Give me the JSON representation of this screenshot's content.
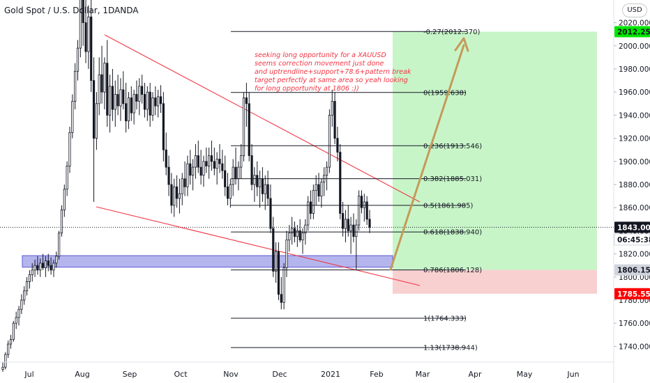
{
  "header": {
    "symbol_title": "Gold Spot / U.S. Dollar, 1",
    "symbol_title_tail": "DANDA",
    "currency_button": "USD"
  },
  "annotation": {
    "lines": [
      "seeking long opportunity for a XAUUSD",
      "seems correction movement just done",
      "and uptrendline+support+78.6+pattern break",
      "target perfectly at same area so yeah looking",
      "for long opportunity at 1806 :))"
    ],
    "color": "#f23645"
  },
  "chart_data": {
    "type": "candlestick",
    "title": "Gold Spot / U.S. Dollar",
    "x_ticks": [
      "Jul",
      "Aug",
      "Sep",
      "Oct",
      "Nov",
      "Dec",
      "2021",
      "Feb",
      "Mar",
      "Apr",
      "May",
      "Jun"
    ],
    "y_ticks": [
      "1740.000",
      "1760.000",
      "1780.000",
      "1800.000",
      "1820.000",
      "1840.000",
      "1860.000",
      "1880.000",
      "1900.000",
      "1920.000",
      "1940.000",
      "1960.000",
      "1980.000",
      "2000.000",
      "2020.000"
    ],
    "ylim": [
      1722,
      2060
    ],
    "price_tags": [
      {
        "label": "2012.255",
        "value": 2012.255,
        "bg": "#00e600",
        "fg": "#131722"
      },
      {
        "label": "1843.005",
        "value": 1843.005,
        "bg": "#131722",
        "fg": "#ffffff"
      },
      {
        "label": "06:45:38",
        "value": 1832.5,
        "bg": "#ffffff",
        "fg": "#131722"
      },
      {
        "label": "1806.159",
        "value": 1806.159,
        "bg": "#d1d4dc",
        "fg": "#131722"
      },
      {
        "label": "1785.550",
        "value": 1785.55,
        "bg": "#ff0000",
        "fg": "#ffffff"
      }
    ],
    "fib_levels": [
      {
        "label": "-0.27(2012.370)",
        "value": 2012.37
      },
      {
        "label": "0(1959.638)",
        "value": 1959.638
      },
      {
        "label": "0.236(1913.546)",
        "value": 1913.546
      },
      {
        "label": "0.382(1885.031)",
        "value": 1885.031
      },
      {
        "label": "0.5(1861.985)",
        "value": 1861.985
      },
      {
        "label": "0.618(1838.940)",
        "value": 1838.94
      },
      {
        "label": "0.786(1806.128)",
        "value": 1806.128
      },
      {
        "label": "1(1764.333)",
        "value": 1764.333
      },
      {
        "label": "1.13(1738.944)",
        "value": 1738.944
      }
    ],
    "support_zone": {
      "from": 1808.5,
      "to": 1818.5,
      "color": "#5b5bd6"
    },
    "long_position": {
      "entry": 1806.159,
      "target": 2012.255,
      "stop": 1785.55,
      "profit_color": "#c8f5c8",
      "loss_color": "#f8d0d0"
    },
    "current_price": 1843.005,
    "candles": [
      {
        "o": 1720,
        "h": 1726,
        "l": 1718,
        "c": 1722
      },
      {
        "o": 1722,
        "h": 1735,
        "l": 1720,
        "c": 1733
      },
      {
        "o": 1733,
        "h": 1745,
        "l": 1730,
        "c": 1742
      },
      {
        "o": 1742,
        "h": 1750,
        "l": 1738,
        "c": 1746
      },
      {
        "o": 1746,
        "h": 1762,
        "l": 1744,
        "c": 1760
      },
      {
        "o": 1760,
        "h": 1770,
        "l": 1755,
        "c": 1765
      },
      {
        "o": 1765,
        "h": 1775,
        "l": 1758,
        "c": 1772
      },
      {
        "o": 1772,
        "h": 1785,
        "l": 1768,
        "c": 1780
      },
      {
        "o": 1780,
        "h": 1792,
        "l": 1776,
        "c": 1788
      },
      {
        "o": 1788,
        "h": 1800,
        "l": 1784,
        "c": 1796
      },
      {
        "o": 1796,
        "h": 1806,
        "l": 1790,
        "c": 1802
      },
      {
        "o": 1802,
        "h": 1812,
        "l": 1796,
        "c": 1806
      },
      {
        "o": 1806,
        "h": 1815,
        "l": 1800,
        "c": 1810
      },
      {
        "o": 1810,
        "h": 1818,
        "l": 1802,
        "c": 1806
      },
      {
        "o": 1806,
        "h": 1816,
        "l": 1800,
        "c": 1812
      },
      {
        "o": 1812,
        "h": 1820,
        "l": 1806,
        "c": 1808
      },
      {
        "o": 1808,
        "h": 1818,
        "l": 1800,
        "c": 1814
      },
      {
        "o": 1814,
        "h": 1820,
        "l": 1805,
        "c": 1810
      },
      {
        "o": 1810,
        "h": 1817,
        "l": 1802,
        "c": 1806
      },
      {
        "o": 1806,
        "h": 1815,
        "l": 1800,
        "c": 1812
      },
      {
        "o": 1812,
        "h": 1822,
        "l": 1808,
        "c": 1818
      },
      {
        "o": 1818,
        "h": 1840,
        "l": 1815,
        "c": 1838
      },
      {
        "o": 1838,
        "h": 1862,
        "l": 1835,
        "c": 1858
      },
      {
        "o": 1858,
        "h": 1880,
        "l": 1852,
        "c": 1876
      },
      {
        "o": 1876,
        "h": 1900,
        "l": 1870,
        "c": 1896
      },
      {
        "o": 1896,
        "h": 1930,
        "l": 1890,
        "c": 1925
      },
      {
        "o": 1925,
        "h": 1958,
        "l": 1920,
        "c": 1952
      },
      {
        "o": 1952,
        "h": 1985,
        "l": 1945,
        "c": 1978
      },
      {
        "o": 1978,
        "h": 2005,
        "l": 1970,
        "c": 1998
      },
      {
        "o": 1998,
        "h": 2050,
        "l": 1990,
        "c": 2040
      },
      {
        "o": 2040,
        "h": 2062,
        "l": 2000,
        "c": 2020
      },
      {
        "o": 2020,
        "h": 2055,
        "l": 1985,
        "c": 1995
      },
      {
        "o": 1995,
        "h": 2035,
        "l": 1980,
        "c": 2025
      },
      {
        "o": 2025,
        "h": 2040,
        "l": 1960,
        "c": 1970
      },
      {
        "o": 1970,
        "h": 1990,
        "l": 1865,
        "c": 1920
      },
      {
        "o": 1920,
        "h": 1960,
        "l": 1910,
        "c": 1950
      },
      {
        "o": 1950,
        "h": 1990,
        "l": 1940,
        "c": 1975
      },
      {
        "o": 1975,
        "h": 2000,
        "l": 1950,
        "c": 1960
      },
      {
        "o": 1960,
        "h": 1990,
        "l": 1945,
        "c": 1985
      },
      {
        "o": 1985,
        "h": 2005,
        "l": 1930,
        "c": 1940
      },
      {
        "o": 1940,
        "h": 1975,
        "l": 1925,
        "c": 1965
      },
      {
        "o": 1965,
        "h": 1980,
        "l": 1935,
        "c": 1945
      },
      {
        "o": 1945,
        "h": 1970,
        "l": 1930,
        "c": 1958
      },
      {
        "o": 1958,
        "h": 1975,
        "l": 1940,
        "c": 1948
      },
      {
        "o": 1948,
        "h": 1972,
        "l": 1935,
        "c": 1962
      },
      {
        "o": 1962,
        "h": 1978,
        "l": 1945,
        "c": 1950
      },
      {
        "o": 1950,
        "h": 1968,
        "l": 1925,
        "c": 1935
      },
      {
        "o": 1935,
        "h": 1960,
        "l": 1928,
        "c": 1955
      },
      {
        "o": 1955,
        "h": 1965,
        "l": 1935,
        "c": 1942
      },
      {
        "o": 1942,
        "h": 1962,
        "l": 1932,
        "c": 1958
      },
      {
        "o": 1958,
        "h": 1970,
        "l": 1945,
        "c": 1952
      },
      {
        "o": 1952,
        "h": 1972,
        "l": 1940,
        "c": 1965
      },
      {
        "o": 1965,
        "h": 1975,
        "l": 1950,
        "c": 1958
      },
      {
        "o": 1958,
        "h": 1968,
        "l": 1938,
        "c": 1945
      },
      {
        "o": 1945,
        "h": 1965,
        "l": 1935,
        "c": 1960
      },
      {
        "o": 1960,
        "h": 1968,
        "l": 1930,
        "c": 1940
      },
      {
        "o": 1940,
        "h": 1960,
        "l": 1935,
        "c": 1955
      },
      {
        "o": 1955,
        "h": 1965,
        "l": 1940,
        "c": 1948
      },
      {
        "o": 1948,
        "h": 1962,
        "l": 1938,
        "c": 1956
      },
      {
        "o": 1956,
        "h": 1966,
        "l": 1942,
        "c": 1950
      },
      {
        "o": 1950,
        "h": 1960,
        "l": 1900,
        "c": 1910
      },
      {
        "o": 1910,
        "h": 1925,
        "l": 1888,
        "c": 1895
      },
      {
        "o": 1895,
        "h": 1905,
        "l": 1870,
        "c": 1880
      },
      {
        "o": 1880,
        "h": 1890,
        "l": 1855,
        "c": 1862
      },
      {
        "o": 1862,
        "h": 1885,
        "l": 1852,
        "c": 1878
      },
      {
        "o": 1878,
        "h": 1888,
        "l": 1860,
        "c": 1868
      },
      {
        "o": 1868,
        "h": 1885,
        "l": 1855,
        "c": 1872
      },
      {
        "o": 1872,
        "h": 1890,
        "l": 1862,
        "c": 1885
      },
      {
        "o": 1885,
        "h": 1900,
        "l": 1870,
        "c": 1878
      },
      {
        "o": 1878,
        "h": 1905,
        "l": 1870,
        "c": 1898
      },
      {
        "o": 1898,
        "h": 1910,
        "l": 1880,
        "c": 1888
      },
      {
        "o": 1888,
        "h": 1902,
        "l": 1875,
        "c": 1895
      },
      {
        "o": 1895,
        "h": 1915,
        "l": 1885,
        "c": 1905
      },
      {
        "o": 1905,
        "h": 1918,
        "l": 1890,
        "c": 1895
      },
      {
        "o": 1895,
        "h": 1910,
        "l": 1880,
        "c": 1888
      },
      {
        "o": 1888,
        "h": 1905,
        "l": 1878,
        "c": 1900
      },
      {
        "o": 1900,
        "h": 1912,
        "l": 1890,
        "c": 1896
      },
      {
        "o": 1896,
        "h": 1912,
        "l": 1885,
        "c": 1905
      },
      {
        "o": 1905,
        "h": 1918,
        "l": 1892,
        "c": 1900
      },
      {
        "o": 1900,
        "h": 1912,
        "l": 1888,
        "c": 1894
      },
      {
        "o": 1894,
        "h": 1908,
        "l": 1880,
        "c": 1902
      },
      {
        "o": 1902,
        "h": 1915,
        "l": 1890,
        "c": 1898
      },
      {
        "o": 1898,
        "h": 1910,
        "l": 1885,
        "c": 1892
      },
      {
        "o": 1892,
        "h": 1905,
        "l": 1870,
        "c": 1878
      },
      {
        "o": 1878,
        "h": 1890,
        "l": 1862,
        "c": 1868
      },
      {
        "o": 1868,
        "h": 1885,
        "l": 1860,
        "c": 1880
      },
      {
        "o": 1880,
        "h": 1902,
        "l": 1870,
        "c": 1895
      },
      {
        "o": 1895,
        "h": 1912,
        "l": 1880,
        "c": 1885
      },
      {
        "o": 1885,
        "h": 1900,
        "l": 1875,
        "c": 1895
      },
      {
        "o": 1895,
        "h": 1915,
        "l": 1885,
        "c": 1905
      },
      {
        "o": 1905,
        "h": 1960,
        "l": 1900,
        "c": 1955
      },
      {
        "o": 1955,
        "h": 1968,
        "l": 1930,
        "c": 1950
      },
      {
        "o": 1950,
        "h": 1960,
        "l": 1900,
        "c": 1905
      },
      {
        "o": 1905,
        "h": 1915,
        "l": 1875,
        "c": 1880
      },
      {
        "o": 1880,
        "h": 1895,
        "l": 1865,
        "c": 1888
      },
      {
        "o": 1888,
        "h": 1900,
        "l": 1870,
        "c": 1878
      },
      {
        "o": 1878,
        "h": 1892,
        "l": 1860,
        "c": 1885
      },
      {
        "o": 1885,
        "h": 1895,
        "l": 1865,
        "c": 1872
      },
      {
        "o": 1872,
        "h": 1888,
        "l": 1858,
        "c": 1880
      },
      {
        "o": 1880,
        "h": 1892,
        "l": 1862,
        "c": 1868
      },
      {
        "o": 1868,
        "h": 1880,
        "l": 1838,
        "c": 1842
      },
      {
        "o": 1842,
        "h": 1852,
        "l": 1800,
        "c": 1805
      },
      {
        "o": 1805,
        "h": 1830,
        "l": 1795,
        "c": 1822
      },
      {
        "o": 1822,
        "h": 1830,
        "l": 1780,
        "c": 1785
      },
      {
        "o": 1785,
        "h": 1800,
        "l": 1772,
        "c": 1778
      },
      {
        "o": 1778,
        "h": 1812,
        "l": 1772,
        "c": 1808
      },
      {
        "o": 1808,
        "h": 1840,
        "l": 1800,
        "c": 1832
      },
      {
        "o": 1832,
        "h": 1845,
        "l": 1822,
        "c": 1838
      },
      {
        "o": 1838,
        "h": 1852,
        "l": 1828,
        "c": 1842
      },
      {
        "o": 1842,
        "h": 1848,
        "l": 1830,
        "c": 1835
      },
      {
        "o": 1835,
        "h": 1845,
        "l": 1826,
        "c": 1840
      },
      {
        "o": 1840,
        "h": 1850,
        "l": 1830,
        "c": 1832
      },
      {
        "o": 1832,
        "h": 1842,
        "l": 1820,
        "c": 1838
      },
      {
        "o": 1838,
        "h": 1850,
        "l": 1828,
        "c": 1845
      },
      {
        "o": 1845,
        "h": 1870,
        "l": 1840,
        "c": 1865
      },
      {
        "o": 1865,
        "h": 1875,
        "l": 1850,
        "c": 1855
      },
      {
        "o": 1855,
        "h": 1880,
        "l": 1850,
        "c": 1875
      },
      {
        "o": 1875,
        "h": 1888,
        "l": 1862,
        "c": 1880
      },
      {
        "o": 1880,
        "h": 1890,
        "l": 1865,
        "c": 1870
      },
      {
        "o": 1870,
        "h": 1885,
        "l": 1860,
        "c": 1882
      },
      {
        "o": 1882,
        "h": 1895,
        "l": 1870,
        "c": 1888
      },
      {
        "o": 1888,
        "h": 1900,
        "l": 1875,
        "c": 1895
      },
      {
        "o": 1895,
        "h": 1945,
        "l": 1890,
        "c": 1940
      },
      {
        "o": 1940,
        "h": 1962,
        "l": 1930,
        "c": 1952
      },
      {
        "o": 1952,
        "h": 1960,
        "l": 1915,
        "c": 1920
      },
      {
        "o": 1920,
        "h": 1930,
        "l": 1900,
        "c": 1908
      },
      {
        "o": 1908,
        "h": 1915,
        "l": 1850,
        "c": 1855
      },
      {
        "o": 1855,
        "h": 1865,
        "l": 1835,
        "c": 1842
      },
      {
        "o": 1842,
        "h": 1858,
        "l": 1830,
        "c": 1850
      },
      {
        "o": 1850,
        "h": 1862,
        "l": 1835,
        "c": 1840
      },
      {
        "o": 1840,
        "h": 1852,
        "l": 1820,
        "c": 1845
      },
      {
        "o": 1845,
        "h": 1855,
        "l": 1830,
        "c": 1835
      },
      {
        "o": 1835,
        "h": 1850,
        "l": 1806,
        "c": 1845
      },
      {
        "o": 1845,
        "h": 1875,
        "l": 1840,
        "c": 1870
      },
      {
        "o": 1870,
        "h": 1875,
        "l": 1855,
        "c": 1860
      },
      {
        "o": 1860,
        "h": 1872,
        "l": 1848,
        "c": 1865
      },
      {
        "o": 1865,
        "h": 1870,
        "l": 1845,
        "c": 1850
      },
      {
        "o": 1850,
        "h": 1858,
        "l": 1838,
        "c": 1843
      }
    ]
  }
}
